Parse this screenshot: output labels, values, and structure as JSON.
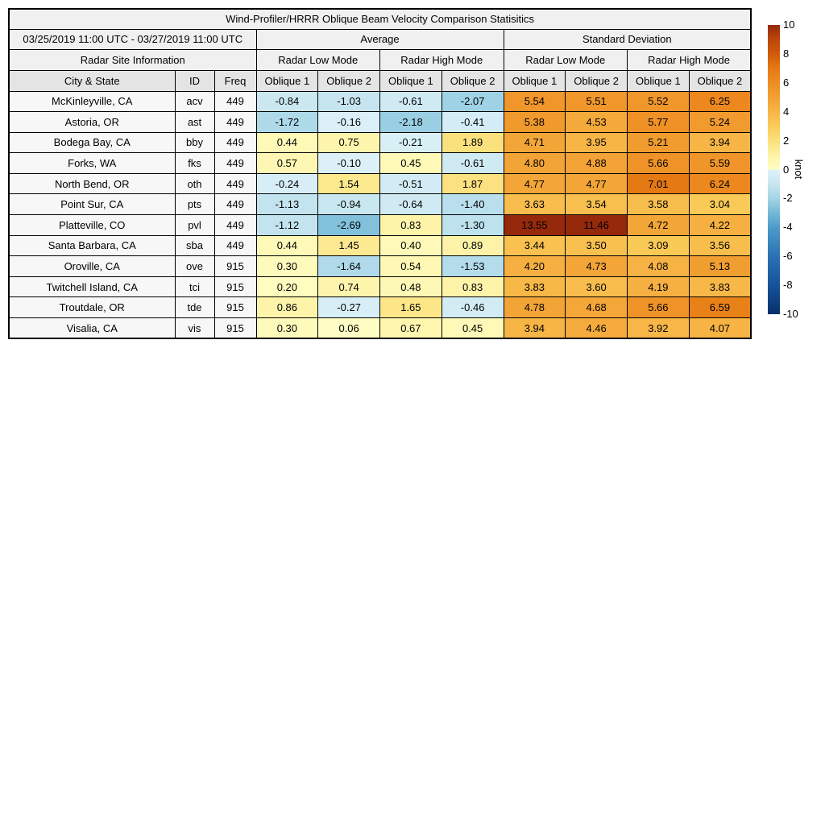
{
  "title": "Wind-Profiler/HRRR Oblique Beam Velocity Comparison Statisitics",
  "date_range": "03/25/2019 11:00 UTC - 03/27/2019 11:00 UTC",
  "headers": {
    "average": "Average",
    "std_dev": "Standard Deviation",
    "site_info": "Radar Site Information",
    "low_mode": "Radar Low Mode",
    "high_mode": "Radar High Mode",
    "city": "City & State",
    "id": "ID",
    "freq": "Freq",
    "oblique1": "Oblique 1",
    "oblique2": "Oblique 2"
  },
  "colorbar": {
    "label": "knot",
    "ticks": [
      10,
      8,
      6,
      4,
      2,
      0,
      -2,
      -4,
      -6,
      -8,
      -10
    ],
    "vmin": -10,
    "vmax": 10
  },
  "colormap": {
    "negative": [
      [
        -10,
        "#08306b"
      ],
      [
        -8,
        "#16539a"
      ],
      [
        -6,
        "#2a71b3"
      ],
      [
        -4,
        "#4d9bc9"
      ],
      [
        -3,
        "#74b9d8"
      ],
      [
        -2,
        "#a2d4e5"
      ],
      [
        -1,
        "#c8e6f0"
      ],
      [
        0,
        "#ddf1f8"
      ]
    ],
    "positive": [
      [
        0,
        "#fffec6"
      ],
      [
        1,
        "#fdf2a4"
      ],
      [
        2,
        "#fbdf79"
      ],
      [
        3,
        "#f9cb58"
      ],
      [
        4,
        "#f7b445"
      ],
      [
        5,
        "#f2a033"
      ],
      [
        6,
        "#ee8d22"
      ],
      [
        7,
        "#e57913"
      ],
      [
        8,
        "#d05a0a"
      ],
      [
        9,
        "#bb4709"
      ],
      [
        10,
        "#96290c"
      ]
    ]
  },
  "chart_data": {
    "type": "heatmap",
    "title": "Wind-Profiler/HRRR Oblique Beam Velocity Comparison Statisitics",
    "subtitle": "03/25/2019 11:00 UTC - 03/27/2019 11:00 UTC",
    "colorbar_label": "knot",
    "colorbar_range": [
      -10,
      10
    ],
    "colorbar_ticks": [
      10,
      8,
      6,
      4,
      2,
      0,
      -2,
      -4,
      -6,
      -8,
      -10
    ],
    "column_groups": [
      "Average / Radar Low Mode",
      "Average / Radar High Mode",
      "Standard Deviation / Radar Low Mode",
      "Standard Deviation / Radar High Mode"
    ],
    "value_columns": [
      "avg_low_oblique1",
      "avg_low_oblique2",
      "avg_high_oblique1",
      "avg_high_oblique2",
      "std_low_oblique1",
      "std_low_oblique2",
      "std_high_oblique1",
      "std_high_oblique2"
    ],
    "rows": [
      {
        "city": "McKinleyville, CA",
        "id": "acv",
        "freq": "449",
        "values": [
          -0.84,
          -1.03,
          -0.61,
          -2.07,
          5.54,
          5.51,
          5.52,
          6.25
        ]
      },
      {
        "city": "Astoria, OR",
        "id": "ast",
        "freq": "449",
        "values": [
          -1.72,
          -0.16,
          -2.18,
          -0.41,
          5.38,
          4.53,
          5.77,
          5.24
        ]
      },
      {
        "city": "Bodega Bay, CA",
        "id": "bby",
        "freq": "449",
        "values": [
          0.44,
          0.75,
          -0.21,
          1.89,
          4.71,
          3.95,
          5.21,
          3.94
        ]
      },
      {
        "city": "Forks, WA",
        "id": "fks",
        "freq": "449",
        "values": [
          0.57,
          -0.1,
          0.45,
          -0.61,
          4.8,
          4.88,
          5.66,
          5.59
        ]
      },
      {
        "city": "North Bend, OR",
        "id": "oth",
        "freq": "449",
        "values": [
          -0.24,
          1.54,
          -0.51,
          1.87,
          4.77,
          4.77,
          7.01,
          6.24
        ]
      },
      {
        "city": "Point Sur, CA",
        "id": "pts",
        "freq": "449",
        "values": [
          -1.13,
          -0.94,
          -0.64,
          -1.4,
          3.63,
          3.54,
          3.58,
          3.04
        ]
      },
      {
        "city": "Platteville, CO",
        "id": "pvl",
        "freq": "449",
        "values": [
          -1.12,
          -2.69,
          0.83,
          -1.3,
          13.55,
          11.46,
          4.72,
          4.22
        ]
      },
      {
        "city": "Santa Barbara, CA",
        "id": "sba",
        "freq": "449",
        "values": [
          0.44,
          1.45,
          0.4,
          0.89,
          3.44,
          3.5,
          3.09,
          3.56
        ]
      },
      {
        "city": "Oroville, CA",
        "id": "ove",
        "freq": "915",
        "values": [
          0.3,
          -1.64,
          0.54,
          -1.53,
          4.2,
          4.73,
          4.08,
          5.13
        ]
      },
      {
        "city": "Twitchell Island, CA",
        "id": "tci",
        "freq": "915",
        "values": [
          0.2,
          0.74,
          0.48,
          0.83,
          3.83,
          3.6,
          4.19,
          3.83
        ]
      },
      {
        "city": "Troutdale, OR",
        "id": "tde",
        "freq": "915",
        "values": [
          0.86,
          -0.27,
          1.65,
          -0.46,
          4.78,
          4.68,
          5.66,
          6.59
        ]
      },
      {
        "city": "Visalia, CA",
        "id": "vis",
        "freq": "915",
        "values": [
          0.3,
          0.06,
          0.67,
          0.45,
          3.94,
          4.46,
          3.92,
          4.07
        ]
      }
    ]
  }
}
